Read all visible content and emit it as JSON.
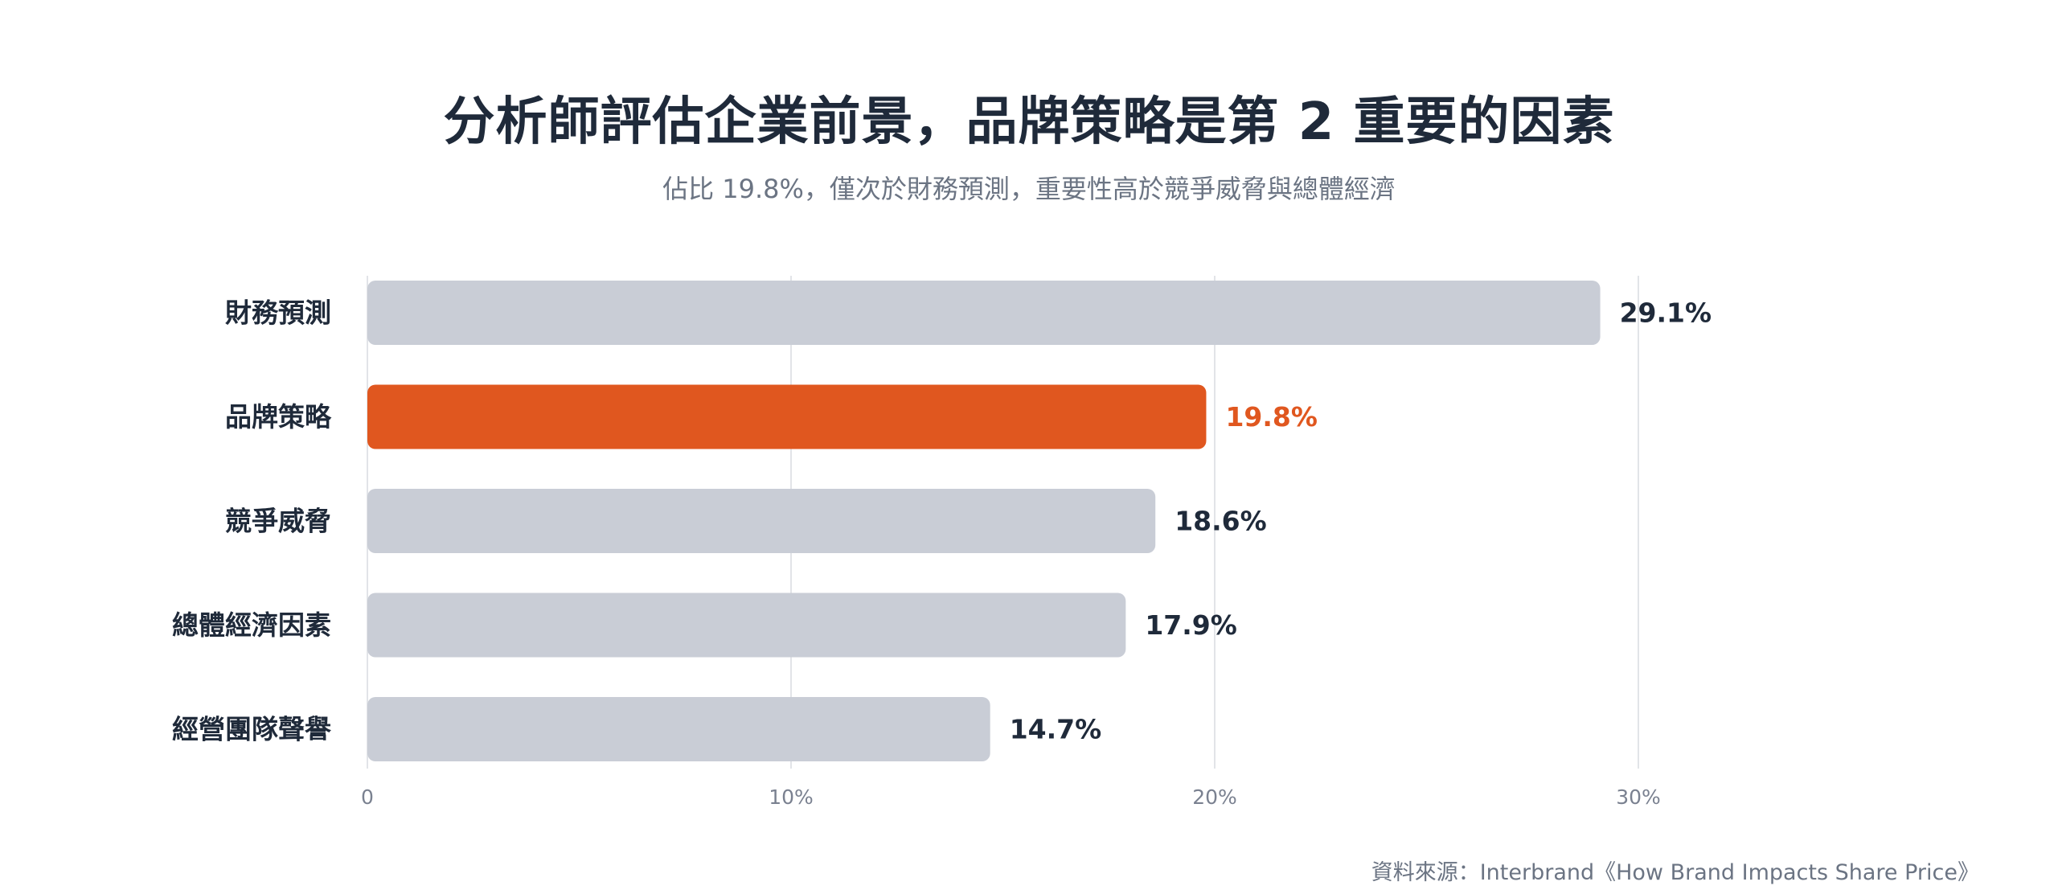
{
  "header": {
    "title": "分析師評估企業前景，品牌策略是第 2 重要的因素",
    "subtitle": "佔比 19.8%，僅次於財務預測，重要性高於競爭威脅與總體經濟"
  },
  "footer": {
    "source": "資料來源：Interbrand《How Brand Impacts Share Price》"
  },
  "colors": {
    "highlight": "#e0571f",
    "default_bar": "#c9cdd6",
    "label_text": "#1f2a3a",
    "axis_text": "#7a8190",
    "grid": "#e2e4e8"
  },
  "chart_data": {
    "type": "bar",
    "orientation": "horizontal",
    "title": "分析師評估企業前景，品牌策略是第 2 重要的因素",
    "subtitle": "佔比 19.8%，僅次於財務預測，重要性高於競爭威脅與總體經濟",
    "categories": [
      "財務預測",
      "品牌策略",
      "競爭威脅",
      "總體經濟因素",
      "經營團隊聲譽"
    ],
    "values": [
      29.1,
      19.8,
      18.6,
      17.9,
      14.7
    ],
    "value_labels": [
      "29.1%",
      "19.8%",
      "18.6%",
      "17.9%",
      "14.7%"
    ],
    "highlight_index": 1,
    "xlim": [
      0,
      30
    ],
    "xticks": [
      0,
      10,
      20,
      30
    ],
    "xtick_labels": [
      "0",
      "10%",
      "20%",
      "30%"
    ],
    "xlabel": "",
    "ylabel": "",
    "grid": true,
    "legend": "none"
  }
}
